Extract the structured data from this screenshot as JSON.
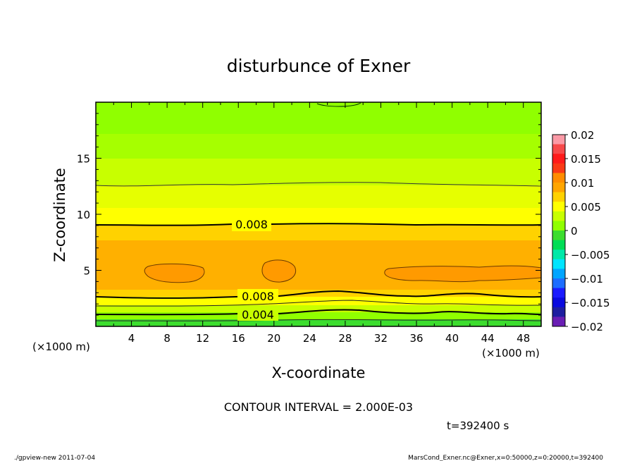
{
  "chart_data": {
    "type": "contour",
    "title": "disturbunce of Exner",
    "xlabel": "X-coordinate",
    "ylabel": "Z-coordinate",
    "x_unit_left": "(×1000 m)",
    "x_unit_right": "(×1000 m)",
    "xlim": [
      0,
      50
    ],
    "ylim": [
      0,
      20
    ],
    "x_ticks": [
      4,
      8,
      12,
      16,
      20,
      24,
      28,
      32,
      36,
      40,
      44,
      48
    ],
    "y_ticks": [
      5,
      10,
      15
    ],
    "colorbar": {
      "ticks": [
        "0.02",
        "0.015",
        "0.01",
        "0.005",
        "0",
        "−0.005",
        "−0.01",
        "−0.015",
        "−0.02"
      ],
      "range": [
        -0.02,
        0.02
      ],
      "colors": [
        "#fb9aa6",
        "#f7494a",
        "#ff1a1a",
        "#fa3a15",
        "#ff8c00",
        "#ffa500",
        "#ffd200",
        "#ffff00",
        "#c8ff00",
        "#90ff00",
        "#3cdd2e",
        "#00dd55",
        "#00e8a8",
        "#00e5ff",
        "#00a5ff",
        "#1d6dff",
        "#1b1bff",
        "#0a0adf",
        "#1e1ea0",
        "#6a1eb4"
      ]
    },
    "contour_interval": "CONTOUR INTERVAL = 2.000E-03",
    "contour_labels": [
      "0.008",
      "0.008",
      "0.004"
    ],
    "profile": [
      {
        "z": 0.0,
        "value": 0.0003
      },
      {
        "z": 0.5,
        "value": 0.0025
      },
      {
        "z": 1.3,
        "value": 0.0045
      },
      {
        "z": 2.2,
        "value": 0.0063
      },
      {
        "z": 3.2,
        "value": 0.0083
      },
      {
        "z": 5.0,
        "value": 0.0096
      },
      {
        "z": 7.5,
        "value": 0.0092
      },
      {
        "z": 9.2,
        "value": 0.008
      },
      {
        "z": 11.0,
        "value": 0.0068
      },
      {
        "z": 12.8,
        "value": 0.006
      },
      {
        "z": 15.0,
        "value": 0.0052
      },
      {
        "z": 20.0,
        "value": 0.0049
      }
    ],
    "time_label": "t=392400 s"
  },
  "footer": {
    "left": "./gpview-new  2011-07-04",
    "right": "MarsCond_Exner.nc@Exner,x=0:50000,z=0:20000,t=392400"
  }
}
